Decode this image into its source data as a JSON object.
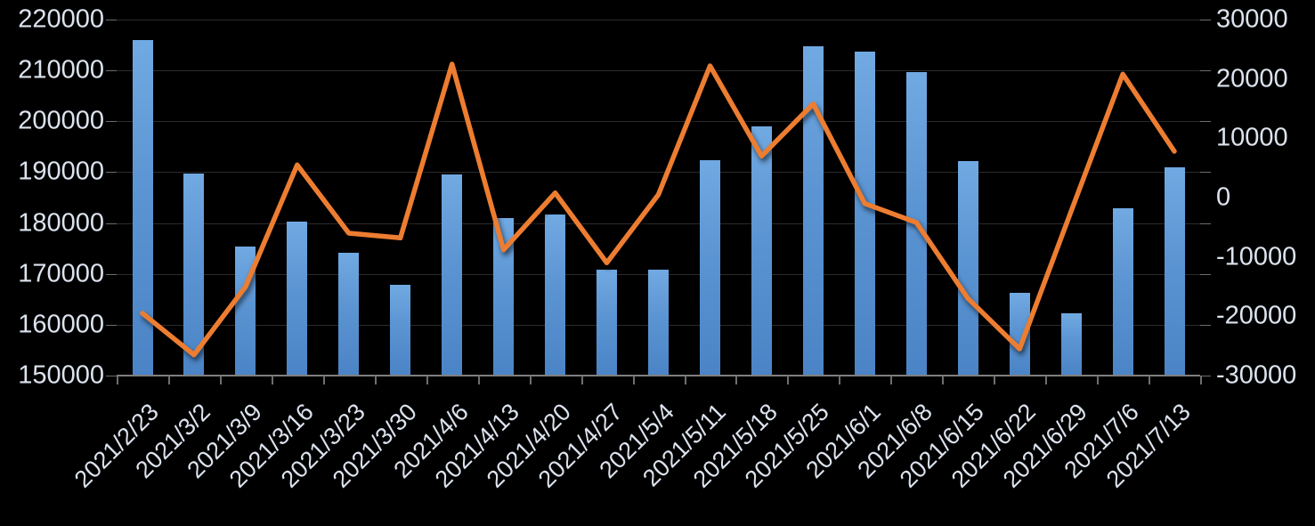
{
  "chart_data": {
    "type": "combo-bar-line",
    "title": "",
    "legend": "none",
    "grid": true,
    "background": "#000000",
    "text_color": "#dce3ee",
    "gridline_color": "#2b2b2b",
    "axis_line_color": "#7f7f7f",
    "bar_color": "#5b9bd5",
    "line_color": "#ed7d31",
    "categories": [
      "2021/2/23",
      "2021/3/2",
      "2021/3/9",
      "2021/3/16",
      "2021/3/23",
      "2021/3/30",
      "2021/4/6",
      "2021/4/13",
      "2021/4/20",
      "2021/4/27",
      "2021/5/4",
      "2021/5/11",
      "2021/5/18",
      "2021/5/25",
      "2021/6/1",
      "2021/6/8",
      "2021/6/15",
      "2021/6/22",
      "2021/6/29",
      "2021/7/6",
      "2021/7/13"
    ],
    "series": [
      {
        "id": "bars",
        "type": "bar",
        "axis": "left",
        "values": [
          215900,
          189800,
          175300,
          180300,
          174200,
          167900,
          189600,
          181000,
          181700,
          170800,
          170900,
          192400,
          199000,
          214700,
          213700,
          209600,
          192200,
          166200,
          162300,
          182900,
          190900
        ]
      },
      {
        "id": "line",
        "type": "line",
        "axis": "right",
        "values": [
          -19500,
          -26500,
          -15000,
          5500,
          -6000,
          -6800,
          22500,
          -8800,
          800,
          -11000,
          500,
          22200,
          7000,
          15800,
          -1000,
          -4200,
          -17000,
          -25500,
          -2300,
          20800,
          7800
        ]
      }
    ],
    "left_axis": {
      "min": 150000,
      "max": 220000,
      "step": 10000,
      "labels": [
        "220000",
        "210000",
        "200000",
        "190000",
        "180000",
        "170000",
        "160000",
        "150000"
      ]
    },
    "right_axis": {
      "min": -30000,
      "max": 30000,
      "step": 10000,
      "labels": [
        "30000",
        "20000",
        "10000",
        "0",
        "-10000",
        "-20000",
        "-30000"
      ]
    }
  }
}
